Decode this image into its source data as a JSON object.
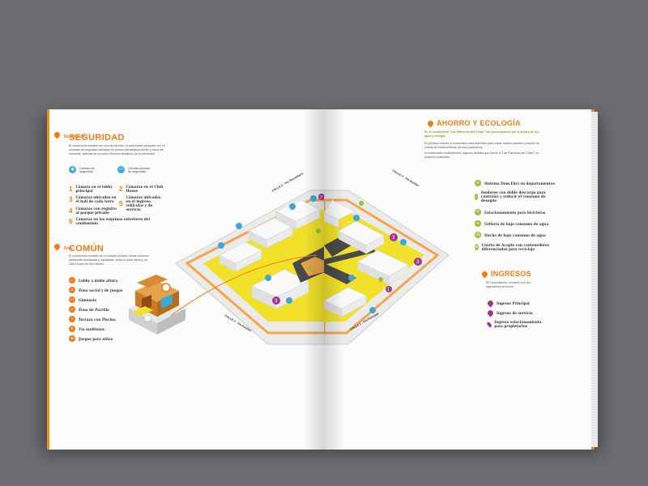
{
  "seguridad": {
    "kicker": "Sistema de",
    "title": "SEGURIDAD",
    "paragraph": "El condominio contará con circuito cerrado, el cual estará equipado con 14 cámaras de seguridad ubicadas en puntos estratégicos dentro y fuera del inmueble, además de un cerco eléctrico alrededor de su perímetro.",
    "legend": [
      {
        "icon": "camera-icon",
        "label": "Cámara de seguridad"
      },
      {
        "icon": "monitor-icon",
        "label": "Circuito cerrado de seguridad"
      }
    ],
    "items": [
      {
        "num": "1",
        "text": "Cámara en el lobby principal"
      },
      {
        "num": "2",
        "text": "Cámaras en el Club House"
      },
      {
        "num": "3",
        "text": "Cámaras ubicadas en el hall de cada torre"
      },
      {
        "num": "4",
        "text": "Cámaras con registro al parque privado"
      },
      {
        "num": "5",
        "text": "Cámaras ubicadas en el ingreso vehicular y de servicio"
      },
      {
        "num": "6",
        "text": "Cámaras en las esquinas exteriores del condominio"
      }
    ]
  },
  "comun": {
    "kicker": "Área",
    "title": "COMÚN",
    "paragraph": "El condominio contará con un parque privado, áreas comunes totalmente amobladas y equipadas, lobby a doble altura y un Club House de dos niveles.",
    "items": [
      {
        "icon": "lobby-icon",
        "text": "Lobby a doble altura"
      },
      {
        "icon": "social-icon",
        "text": "Zona social y de juegos"
      },
      {
        "icon": "gym-icon",
        "text": "Gimnasio"
      },
      {
        "icon": "grill-icon",
        "text": "Zona de Parrilla"
      },
      {
        "icon": "terrace-icon",
        "text": "Terraza con Piscina"
      },
      {
        "icon": "sum-icon",
        "text": "Vía multiusos"
      },
      {
        "icon": "kids-icon",
        "text": "Juegos para niños"
      }
    ]
  },
  "map": {
    "streets": [
      {
        "label": "CALLE 2 - Vía Secundaria"
      },
      {
        "label": "CALLE 4 - Vía Auxiliar"
      },
      {
        "label": "CALLE 3 - Vía Auxiliar"
      },
      {
        "label": "CALLE 1 - Vía Principal"
      }
    ],
    "pins": [
      "1",
      "2",
      "3",
      "3",
      "3"
    ]
  },
  "ahorro": {
    "title": "AHORRO Y ECOLOGÍA",
    "lead": "En el condominio \"Las Palmeras del Chipe\" nos preocupamos por el ahorro de luz, agua y energía.",
    "paragraph1": "Es primera cuando el condominio está diseñado para cuidar nuestro planeta y reducir los costos de mantenimiento de sus propietarios.",
    "paragraph2": "A continuación mostraremos, algunos detalles que hacen a \"Las Palmeras del Chipe\" un proyecto sostenible.",
    "items": [
      {
        "icon": "sun-icon",
        "text": "Sistema Dom.Efici en departamentos"
      },
      {
        "icon": "toilet-icon",
        "text": "Inodoros con doble descarga para controlar y reducir el consumo de desagüe"
      },
      {
        "icon": "bike-icon",
        "text": "Estacionamiento para bicicletas"
      },
      {
        "icon": "faucet-icon",
        "text": "Grifería de bajo consumo de agua"
      },
      {
        "icon": "shower-icon",
        "text": "Ducha de bajo consumo de agua"
      },
      {
        "icon": "trash-icon",
        "text": "Cuarto de Acopio con contenedores diferenciados para reciclaje"
      }
    ]
  },
  "ingresos": {
    "title": "INGRESOS",
    "paragraph": "El condominio contará con los siguientes accesos",
    "items": [
      {
        "num": "1",
        "text": "Ingreso Principal"
      },
      {
        "num": "2",
        "text": "Ingreso de servicio"
      },
      {
        "num": "3",
        "text": "Ingreso estacionamiento para propietarios"
      }
    ]
  },
  "colors": {
    "accent": "#f07b1a",
    "green": "#9bc13c",
    "blue": "#3aa9d8",
    "purple": "#a0388f",
    "yellow": "#f2e12a"
  }
}
